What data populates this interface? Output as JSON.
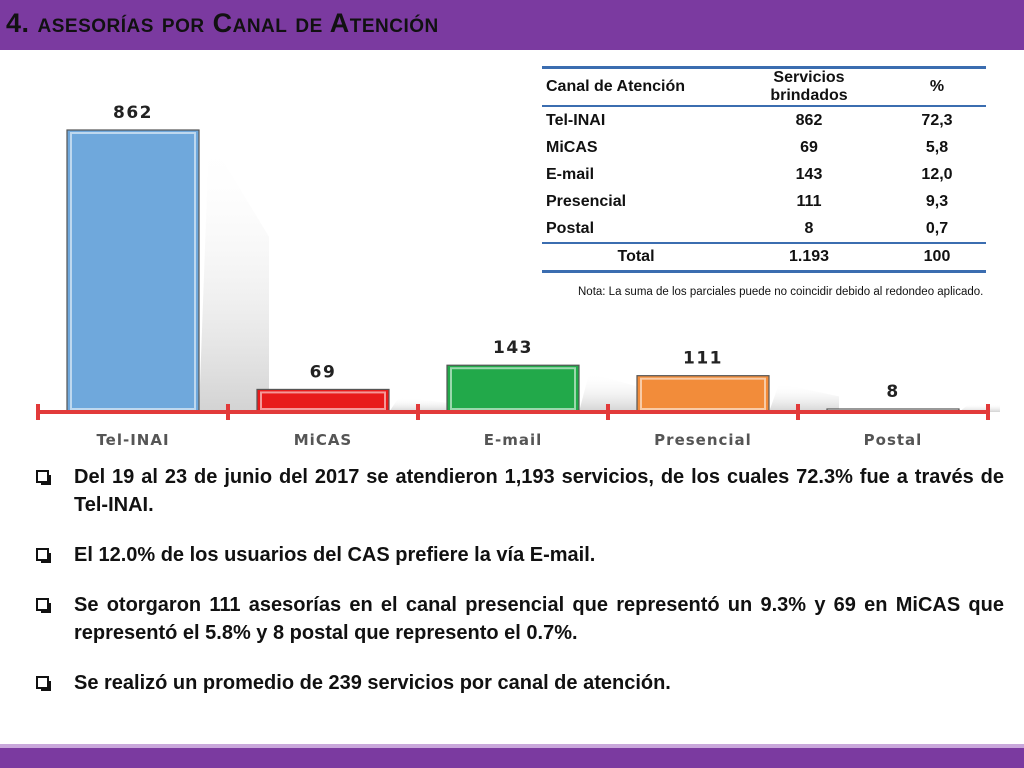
{
  "title": "4. asesorías por Canal de Atención",
  "chart_data": {
    "type": "bar",
    "categories": [
      "Tel-INAI",
      "MiCAS",
      "E-mail",
      "Presencial",
      "Postal"
    ],
    "values": [
      862,
      69,
      143,
      111,
      8
    ],
    "value_labels": [
      "862",
      "69",
      "143",
      "111",
      "8"
    ],
    "colors": [
      "#6fa8dc",
      "#e81b1b",
      "#22a94a",
      "#f28c3a",
      "#ffffff"
    ],
    "axis_color": "#e23a3a",
    "ylim": [
      0,
      862
    ],
    "grid": false,
    "legend": "none"
  },
  "table": {
    "headers": [
      "Canal de Atención",
      "Servicios brindados",
      "%"
    ],
    "rows": [
      [
        "Tel-INAI",
        "862",
        "72,3"
      ],
      [
        "MiCAS",
        "69",
        "5,8"
      ],
      [
        "E-mail",
        "143",
        "12,0"
      ],
      [
        "Presencial",
        "111",
        "9,3"
      ],
      [
        "Postal",
        "8",
        "0,7"
      ]
    ],
    "total": [
      "Total",
      "1.193",
      "100"
    ]
  },
  "note": "Nota: La suma de los parciales puede no coincidir debido al redondeo aplicado.",
  "bullets": [
    "Del 19 al 23 de junio del 2017 se atendieron 1,193 servicios, de los cuales 72.3% fue a través de Tel-INAI.",
    "El 12.0% de los usuarios del CAS prefiere la vía E-mail.",
    "Se otorgaron 111 asesorías en el canal presencial que representó un 9.3% y 69 en MiCAS que representó el 5.8% y 8 postal que represento el 0.7%.",
    "Se realizó un promedio de 239 servicios por canal de atención."
  ]
}
